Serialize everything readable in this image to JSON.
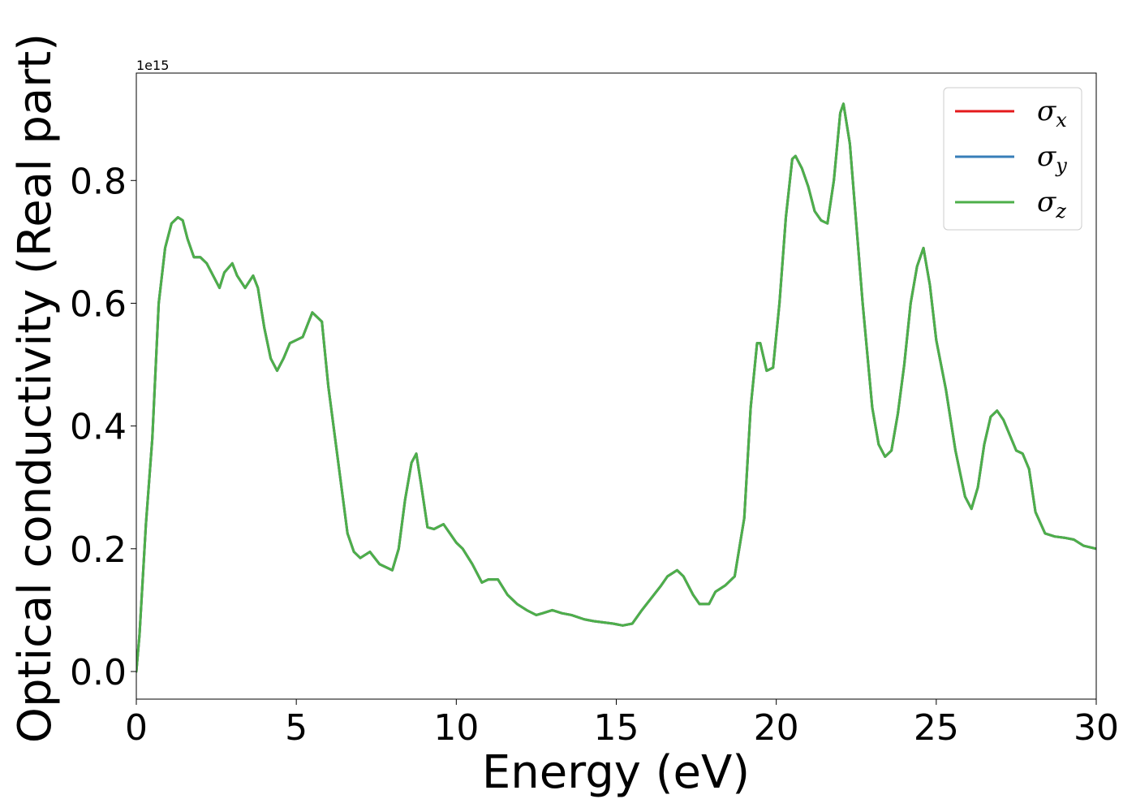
{
  "chart_data": {
    "type": "line",
    "xlabel": "Energy (eV)",
    "ylabel": "Optical conductivity (Real part)",
    "y_offset_text": "1e15",
    "y_scale_factor": 1000000000000000.0,
    "xlim": [
      0,
      30
    ],
    "ylim": [
      -0.045,
      0.975
    ],
    "x_ticks": [
      0,
      5,
      10,
      15,
      20,
      25,
      30
    ],
    "x_tick_labels": [
      "0",
      "5",
      "10",
      "15",
      "20",
      "25",
      "30"
    ],
    "y_ticks": [
      0.0,
      0.2,
      0.4,
      0.6,
      0.8
    ],
    "y_tick_labels": [
      "0.0",
      "0.2",
      "0.4",
      "0.6",
      "0.8"
    ],
    "grid": false,
    "legend_position": "top-right",
    "series": [
      {
        "name": "σx",
        "symbol": "σ",
        "subscript": "x",
        "color": "#e41a1c",
        "x": [
          0,
          0.1,
          0.3,
          0.5,
          0.7,
          0.9,
          1.1,
          1.3,
          1.45,
          1.6,
          1.8,
          2.0,
          2.2,
          2.4,
          2.6,
          2.75,
          3.0,
          3.15,
          3.4,
          3.65,
          3.8,
          4.0,
          4.2,
          4.4,
          4.6,
          4.8,
          5.0,
          5.2,
          5.5,
          5.8,
          6.0,
          6.3,
          6.6,
          6.8,
          7.0,
          7.3,
          7.6,
          7.8,
          8.0,
          8.2,
          8.4,
          8.6,
          8.75,
          8.9,
          9.1,
          9.3,
          9.6,
          9.8,
          10.0,
          10.2,
          10.5,
          10.8,
          11.0,
          11.3,
          11.6,
          11.9,
          12.2,
          12.5,
          12.7,
          13.0,
          13.3,
          13.6,
          14.0,
          14.3,
          14.6,
          14.9,
          15.2,
          15.5,
          15.8,
          16.1,
          16.4,
          16.6,
          16.9,
          17.1,
          17.4,
          17.6,
          17.9,
          18.1,
          18.4,
          18.7,
          19.0,
          19.2,
          19.4,
          19.5,
          19.7,
          19.9,
          20.1,
          20.3,
          20.5,
          20.6,
          20.8,
          21.0,
          21.2,
          21.4,
          21.6,
          21.8,
          22.0,
          22.1,
          22.3,
          22.5,
          22.7,
          23.0,
          23.2,
          23.4,
          23.6,
          23.8,
          24.0,
          24.2,
          24.4,
          24.6,
          24.8,
          25.0,
          25.3,
          25.6,
          25.9,
          26.1,
          26.3,
          26.5,
          26.7,
          26.9,
          27.1,
          27.3,
          27.5,
          27.7,
          27.9,
          28.1,
          28.4,
          28.7,
          29.0,
          29.3,
          29.6,
          30.0
        ],
        "values": [
          0.0,
          0.06,
          0.24,
          0.38,
          0.6,
          0.69,
          0.73,
          0.74,
          0.735,
          0.705,
          0.675,
          0.675,
          0.665,
          0.645,
          0.625,
          0.65,
          0.665,
          0.645,
          0.625,
          0.645,
          0.625,
          0.56,
          0.51,
          0.49,
          0.51,
          0.535,
          0.54,
          0.545,
          0.585,
          0.57,
          0.465,
          0.345,
          0.225,
          0.195,
          0.185,
          0.195,
          0.175,
          0.17,
          0.165,
          0.2,
          0.28,
          0.34,
          0.355,
          0.305,
          0.235,
          0.232,
          0.24,
          0.225,
          0.21,
          0.2,
          0.175,
          0.145,
          0.15,
          0.15,
          0.125,
          0.11,
          0.1,
          0.092,
          0.095,
          0.1,
          0.095,
          0.092,
          0.085,
          0.082,
          0.08,
          0.078,
          0.075,
          0.078,
          0.1,
          0.12,
          0.14,
          0.155,
          0.165,
          0.155,
          0.125,
          0.11,
          0.11,
          0.13,
          0.14,
          0.155,
          0.25,
          0.43,
          0.535,
          0.535,
          0.49,
          0.495,
          0.6,
          0.74,
          0.835,
          0.84,
          0.82,
          0.79,
          0.75,
          0.735,
          0.73,
          0.8,
          0.91,
          0.925,
          0.86,
          0.73,
          0.6,
          0.43,
          0.37,
          0.35,
          0.36,
          0.42,
          0.5,
          0.6,
          0.66,
          0.69,
          0.63,
          0.54,
          0.46,
          0.36,
          0.285,
          0.265,
          0.3,
          0.37,
          0.415,
          0.425,
          0.41,
          0.385,
          0.36,
          0.355,
          0.33,
          0.26,
          0.225,
          0.22,
          0.218,
          0.215,
          0.205,
          0.2
        ]
      },
      {
        "name": "σy",
        "symbol": "σ",
        "subscript": "y",
        "color": "#377eb8",
        "x": [
          0,
          0.1,
          0.3,
          0.5,
          0.7,
          0.9,
          1.1,
          1.3,
          1.45,
          1.6,
          1.8,
          2.0,
          2.2,
          2.4,
          2.6,
          2.75,
          3.0,
          3.15,
          3.4,
          3.65,
          3.8,
          4.0,
          4.2,
          4.4,
          4.6,
          4.8,
          5.0,
          5.2,
          5.5,
          5.8,
          6.0,
          6.3,
          6.6,
          6.8,
          7.0,
          7.3,
          7.6,
          7.8,
          8.0,
          8.2,
          8.4,
          8.6,
          8.75,
          8.9,
          9.1,
          9.3,
          9.6,
          9.8,
          10.0,
          10.2,
          10.5,
          10.8,
          11.0,
          11.3,
          11.6,
          11.9,
          12.2,
          12.5,
          12.7,
          13.0,
          13.3,
          13.6,
          14.0,
          14.3,
          14.6,
          14.9,
          15.2,
          15.5,
          15.8,
          16.1,
          16.4,
          16.6,
          16.9,
          17.1,
          17.4,
          17.6,
          17.9,
          18.1,
          18.4,
          18.7,
          19.0,
          19.2,
          19.4,
          19.5,
          19.7,
          19.9,
          20.1,
          20.3,
          20.5,
          20.6,
          20.8,
          21.0,
          21.2,
          21.4,
          21.6,
          21.8,
          22.0,
          22.1,
          22.3,
          22.5,
          22.7,
          23.0,
          23.2,
          23.4,
          23.6,
          23.8,
          24.0,
          24.2,
          24.4,
          24.6,
          24.8,
          25.0,
          25.3,
          25.6,
          25.9,
          26.1,
          26.3,
          26.5,
          26.7,
          26.9,
          27.1,
          27.3,
          27.5,
          27.7,
          27.9,
          28.1,
          28.4,
          28.7,
          29.0,
          29.3,
          29.6,
          30.0
        ],
        "values": [
          0.0,
          0.06,
          0.24,
          0.38,
          0.6,
          0.69,
          0.73,
          0.74,
          0.735,
          0.705,
          0.675,
          0.675,
          0.665,
          0.645,
          0.625,
          0.65,
          0.665,
          0.645,
          0.625,
          0.645,
          0.625,
          0.56,
          0.51,
          0.49,
          0.51,
          0.535,
          0.54,
          0.545,
          0.585,
          0.57,
          0.465,
          0.345,
          0.225,
          0.195,
          0.185,
          0.195,
          0.175,
          0.17,
          0.165,
          0.2,
          0.28,
          0.34,
          0.355,
          0.305,
          0.235,
          0.232,
          0.24,
          0.225,
          0.21,
          0.2,
          0.175,
          0.145,
          0.15,
          0.15,
          0.125,
          0.11,
          0.1,
          0.092,
          0.095,
          0.1,
          0.095,
          0.092,
          0.085,
          0.082,
          0.08,
          0.078,
          0.075,
          0.078,
          0.1,
          0.12,
          0.14,
          0.155,
          0.165,
          0.155,
          0.125,
          0.11,
          0.11,
          0.13,
          0.14,
          0.155,
          0.25,
          0.43,
          0.535,
          0.535,
          0.49,
          0.495,
          0.6,
          0.74,
          0.835,
          0.84,
          0.82,
          0.79,
          0.75,
          0.735,
          0.73,
          0.8,
          0.91,
          0.925,
          0.86,
          0.73,
          0.6,
          0.43,
          0.37,
          0.35,
          0.36,
          0.42,
          0.5,
          0.6,
          0.66,
          0.69,
          0.63,
          0.54,
          0.46,
          0.36,
          0.285,
          0.265,
          0.3,
          0.37,
          0.415,
          0.425,
          0.41,
          0.385,
          0.36,
          0.355,
          0.33,
          0.26,
          0.225,
          0.22,
          0.218,
          0.215,
          0.205,
          0.2
        ]
      },
      {
        "name": "σz",
        "symbol": "σ",
        "subscript": "z",
        "color": "#4daf4a",
        "x": [
          0,
          0.1,
          0.3,
          0.5,
          0.7,
          0.9,
          1.1,
          1.3,
          1.45,
          1.6,
          1.8,
          2.0,
          2.2,
          2.4,
          2.6,
          2.75,
          3.0,
          3.15,
          3.4,
          3.65,
          3.8,
          4.0,
          4.2,
          4.4,
          4.6,
          4.8,
          5.0,
          5.2,
          5.5,
          5.8,
          6.0,
          6.3,
          6.6,
          6.8,
          7.0,
          7.3,
          7.6,
          7.8,
          8.0,
          8.2,
          8.4,
          8.6,
          8.75,
          8.9,
          9.1,
          9.3,
          9.6,
          9.8,
          10.0,
          10.2,
          10.5,
          10.8,
          11.0,
          11.3,
          11.6,
          11.9,
          12.2,
          12.5,
          12.7,
          13.0,
          13.3,
          13.6,
          14.0,
          14.3,
          14.6,
          14.9,
          15.2,
          15.5,
          15.8,
          16.1,
          16.4,
          16.6,
          16.9,
          17.1,
          17.4,
          17.6,
          17.9,
          18.1,
          18.4,
          18.7,
          19.0,
          19.2,
          19.4,
          19.5,
          19.7,
          19.9,
          20.1,
          20.3,
          20.5,
          20.6,
          20.8,
          21.0,
          21.2,
          21.4,
          21.6,
          21.8,
          22.0,
          22.1,
          22.3,
          22.5,
          22.7,
          23.0,
          23.2,
          23.4,
          23.6,
          23.8,
          24.0,
          24.2,
          24.4,
          24.6,
          24.8,
          25.0,
          25.3,
          25.6,
          25.9,
          26.1,
          26.3,
          26.5,
          26.7,
          26.9,
          27.1,
          27.3,
          27.5,
          27.7,
          27.9,
          28.1,
          28.4,
          28.7,
          29.0,
          29.3,
          29.6,
          30.0
        ],
        "values": [
          0.0,
          0.06,
          0.24,
          0.38,
          0.6,
          0.69,
          0.73,
          0.74,
          0.735,
          0.705,
          0.675,
          0.675,
          0.665,
          0.645,
          0.625,
          0.65,
          0.665,
          0.645,
          0.625,
          0.645,
          0.625,
          0.56,
          0.51,
          0.49,
          0.51,
          0.535,
          0.54,
          0.545,
          0.585,
          0.57,
          0.465,
          0.345,
          0.225,
          0.195,
          0.185,
          0.195,
          0.175,
          0.17,
          0.165,
          0.2,
          0.28,
          0.34,
          0.355,
          0.305,
          0.235,
          0.232,
          0.24,
          0.225,
          0.21,
          0.2,
          0.175,
          0.145,
          0.15,
          0.15,
          0.125,
          0.11,
          0.1,
          0.092,
          0.095,
          0.1,
          0.095,
          0.092,
          0.085,
          0.082,
          0.08,
          0.078,
          0.075,
          0.078,
          0.1,
          0.12,
          0.14,
          0.155,
          0.165,
          0.155,
          0.125,
          0.11,
          0.11,
          0.13,
          0.14,
          0.155,
          0.25,
          0.43,
          0.535,
          0.535,
          0.49,
          0.495,
          0.6,
          0.74,
          0.835,
          0.84,
          0.82,
          0.79,
          0.75,
          0.735,
          0.73,
          0.8,
          0.91,
          0.925,
          0.86,
          0.73,
          0.6,
          0.43,
          0.37,
          0.35,
          0.36,
          0.42,
          0.5,
          0.6,
          0.66,
          0.69,
          0.63,
          0.54,
          0.46,
          0.36,
          0.285,
          0.265,
          0.3,
          0.37,
          0.415,
          0.425,
          0.41,
          0.385,
          0.36,
          0.355,
          0.33,
          0.26,
          0.225,
          0.22,
          0.218,
          0.215,
          0.205,
          0.2
        ]
      }
    ]
  }
}
